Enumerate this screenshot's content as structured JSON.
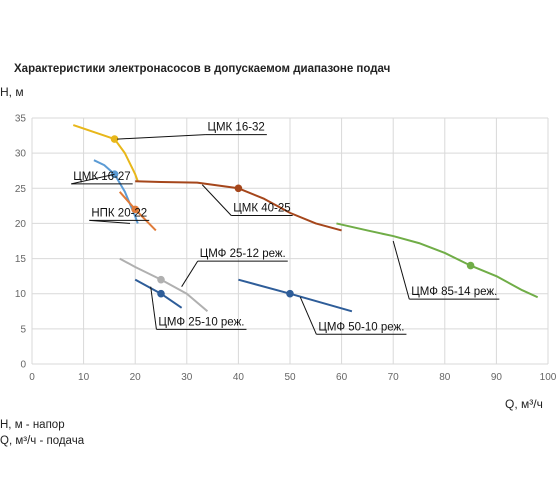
{
  "notes": [
    "H, м - напор",
    "Q, м³/ч - подача"
  ],
  "chart_data": {
    "type": "line",
    "title": "Характеристики электронасосов в допускаемом диапазоне подач",
    "ylabel": "H, м",
    "xlabel": "Q, м³/ч",
    "xlim": [
      0,
      100
    ],
    "ylim": [
      0,
      35
    ],
    "xticks": [
      0,
      10,
      20,
      30,
      40,
      50,
      60,
      70,
      80,
      90,
      100
    ],
    "yticks": [
      0,
      5,
      10,
      15,
      20,
      25,
      30,
      35
    ],
    "grid": true,
    "legend": "none",
    "series": [
      {
        "name": "ЦМК 16-32",
        "color": "#e8b71a",
        "x": [
          8,
          12,
          16,
          18,
          20,
          20.5
        ],
        "y": [
          34,
          33,
          32,
          30,
          27,
          26
        ],
        "marker": [
          16,
          32
        ],
        "label_anchor": [
          16.5,
          32
        ],
        "label_pos": [
          34,
          33.2
        ]
      },
      {
        "name": "ЦМК 16-27",
        "color": "#5b9bd5",
        "x": [
          12,
          14,
          16,
          18,
          20,
          20.5
        ],
        "y": [
          29,
          28.3,
          27,
          24.5,
          21,
          20
        ],
        "marker": [
          16,
          27
        ],
        "label_anchor": [
          16,
          27
        ],
        "label_pos": [
          8,
          26.2
        ]
      },
      {
        "name": "НПК 20-22",
        "color": "#e07b39",
        "x": [
          17,
          20,
          22,
          24
        ],
        "y": [
          24.5,
          22,
          20.5,
          19
        ],
        "marker": [
          20,
          22
        ],
        "label_anchor": [
          19,
          20
        ],
        "label_pos": [
          11.5,
          21
        ]
      },
      {
        "name": "ЦМК 40-25",
        "color": "#a5461b",
        "x": [
          20,
          25,
          32,
          40,
          45,
          50,
          55,
          60
        ],
        "y": [
          26,
          25.9,
          25.8,
          25,
          23.5,
          21.5,
          20,
          19
        ],
        "marker": [
          40,
          25
        ],
        "label_anchor": [
          33,
          25.5
        ],
        "label_pos": [
          39,
          21.7
        ]
      },
      {
        "name": "ЦМФ 85-14 реж.",
        "color": "#70ad47",
        "x": [
          59,
          65,
          70,
          75,
          80,
          85,
          90,
          95,
          98
        ],
        "y": [
          20,
          19,
          18.2,
          17.2,
          15.8,
          14,
          12.5,
          10.5,
          9.5
        ],
        "marker": [
          85,
          14
        ],
        "label_anchor": [
          70,
          17.5
        ],
        "label_pos": [
          73.5,
          9.8
        ]
      },
      {
        "name": "ЦМФ 25-12 реж.",
        "color": "#b0b0b0",
        "x": [
          17,
          20,
          25,
          30,
          34
        ],
        "y": [
          15,
          13.8,
          12,
          10,
          7.5
        ],
        "marker": [
          25,
          12
        ],
        "label_anchor": [
          29,
          11
        ],
        "label_pos": [
          32.5,
          15.2
        ]
      },
      {
        "name": "ЦМФ 25-10 реж.",
        "color": "#2e5d99",
        "x": [
          20,
          25,
          29
        ],
        "y": [
          12,
          10,
          8
        ],
        "marker": [
          25,
          10
        ],
        "label_anchor": [
          23,
          11
        ],
        "label_pos": [
          24.5,
          5.5
        ]
      },
      {
        "name": "ЦМФ 50-10 реж.",
        "color": "#2e5d99",
        "x": [
          40,
          50,
          62
        ],
        "y": [
          12,
          10,
          7.5
        ],
        "marker": [
          50,
          10
        ],
        "label_anchor": [
          52,
          9.5
        ],
        "label_pos": [
          55.5,
          4.8
        ]
      }
    ]
  }
}
